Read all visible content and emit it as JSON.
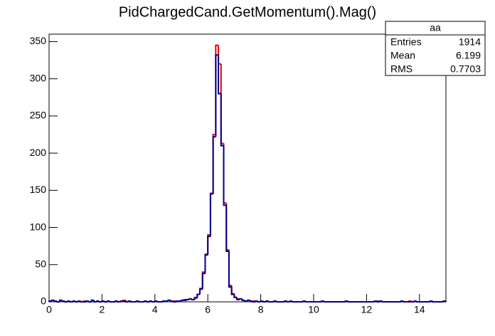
{
  "chart_data": {
    "type": "histogram",
    "title": "PidChargedCand.GetMomentum().Mag()",
    "bins": [
      0,
      0.1,
      0.2,
      0.3,
      0.4,
      0.5,
      0.6,
      0.7,
      0.8,
      0.9,
      1,
      1.1,
      1.2,
      1.3,
      1.4,
      1.5,
      1.6,
      1.7,
      1.8,
      1.9,
      2,
      2.1,
      2.2,
      2.3,
      2.4,
      2.5,
      2.6,
      2.7,
      2.8,
      2.9,
      3,
      3.1,
      3.2,
      3.3,
      3.4,
      3.5,
      3.6,
      3.7,
      3.8,
      3.9,
      4,
      4.1,
      4.2,
      4.3,
      4.4,
      4.5,
      4.6,
      4.7,
      4.8,
      4.9,
      5,
      5.1,
      5.2,
      5.3,
      5.4,
      5.5,
      5.6,
      5.7,
      5.8,
      5.9,
      6,
      6.1,
      6.2,
      6.3,
      6.4,
      6.5,
      6.6,
      6.7,
      6.8,
      6.9,
      7,
      7.1,
      7.2,
      7.3,
      7.4,
      7.5,
      7.6,
      7.7,
      7.8,
      7.9,
      8,
      8.1,
      8.2,
      8.3,
      8.4,
      8.5,
      8.6,
      8.7,
      8.8,
      8.9,
      9,
      9.1,
      9.2,
      9.3,
      9.4,
      9.5,
      9.6,
      9.7,
      9.8,
      9.9,
      10,
      10.1,
      10.2,
      10.3,
      10.4,
      10.5,
      10.6,
      10.7,
      10.8,
      10.9,
      11,
      11.1,
      11.2,
      11.3,
      11.4,
      11.5,
      11.6,
      11.7,
      11.8,
      11.9,
      12,
      12.1,
      12.2,
      12.3,
      12.4,
      12.5,
      12.6,
      12.7,
      12.8,
      12.9,
      13,
      13.1,
      13.2,
      13.3,
      13.4,
      13.5,
      13.6,
      13.7,
      13.8,
      13.9,
      14,
      14.1,
      14.2,
      14.3,
      14.4,
      14.5,
      14.6,
      14.7,
      14.8,
      14.9,
      15
    ],
    "series": [
      {
        "color": "#e00000",
        "values": [
          1,
          2,
          1,
          0,
          2,
          1,
          0,
          1,
          0,
          1,
          0,
          1,
          0,
          1,
          1,
          0,
          2,
          0,
          1,
          0,
          1,
          0,
          1,
          0,
          0,
          1,
          0,
          1,
          2,
          0,
          1,
          0,
          0,
          1,
          0,
          0,
          1,
          0,
          1,
          0,
          1,
          0,
          0,
          1,
          1,
          2,
          1,
          1,
          1,
          1,
          2,
          3,
          3,
          4,
          3,
          6,
          10,
          18,
          40,
          64,
          90,
          146,
          225,
          345,
          320,
          213,
          133,
          70,
          22,
          11,
          6,
          4,
          4,
          2,
          1,
          2,
          1,
          1,
          1,
          0,
          1,
          0,
          1,
          0,
          0,
          1,
          0,
          0,
          0,
          1,
          0,
          1,
          0,
          0,
          0,
          0,
          1,
          0,
          0,
          0,
          0,
          0,
          0,
          1,
          0,
          0,
          0,
          0,
          0,
          0,
          0,
          0,
          1,
          0,
          0,
          0,
          0,
          0,
          0,
          0,
          0,
          0,
          0,
          1,
          1,
          1,
          0,
          0,
          0,
          0,
          0,
          0,
          0,
          1,
          0,
          0,
          1,
          0,
          1,
          0,
          0,
          0,
          0,
          0,
          1,
          0,
          0,
          0,
          0,
          1
        ]
      },
      {
        "color": "#00008b",
        "values": [
          1,
          2,
          1,
          0,
          2,
          1,
          0,
          1,
          0,
          1,
          0,
          1,
          0,
          0,
          1,
          0,
          2,
          0,
          1,
          0,
          1,
          0,
          1,
          0,
          0,
          1,
          0,
          1,
          1,
          0,
          1,
          0,
          0,
          1,
          0,
          0,
          1,
          0,
          1,
          0,
          1,
          0,
          0,
          1,
          1,
          2,
          1,
          0,
          1,
          1,
          2,
          2,
          3,
          4,
          3,
          5,
          10,
          17,
          38,
          63,
          88,
          145,
          222,
          332,
          280,
          210,
          130,
          68,
          20,
          10,
          6,
          3,
          4,
          2,
          1,
          2,
          1,
          0,
          1,
          0,
          1,
          0,
          1,
          0,
          0,
          1,
          0,
          0,
          0,
          1,
          0,
          1,
          0,
          0,
          0,
          0,
          1,
          0,
          0,
          0,
          0,
          0,
          0,
          1,
          0,
          0,
          0,
          0,
          0,
          0,
          0,
          0,
          1,
          0,
          0,
          0,
          0,
          0,
          0,
          0,
          0,
          0,
          0,
          1,
          0,
          1,
          0,
          0,
          0,
          0,
          0,
          0,
          0,
          1,
          0,
          0,
          0,
          0,
          1,
          0,
          0,
          0,
          0,
          0,
          1,
          0,
          0,
          0,
          0,
          1
        ]
      }
    ],
    "xlim": [
      0,
      15
    ],
    "xticks": [
      0,
      2,
      4,
      6,
      8,
      10,
      12,
      14
    ],
    "ylim": [
      0,
      360
    ],
    "yticks": [
      0,
      50,
      100,
      150,
      200,
      250,
      300,
      350
    ],
    "stats": {
      "title": "aa",
      "rows": [
        [
          "Entries",
          1914
        ],
        [
          "Mean",
          6.199
        ],
        [
          "RMS",
          0.7703
        ]
      ]
    }
  }
}
